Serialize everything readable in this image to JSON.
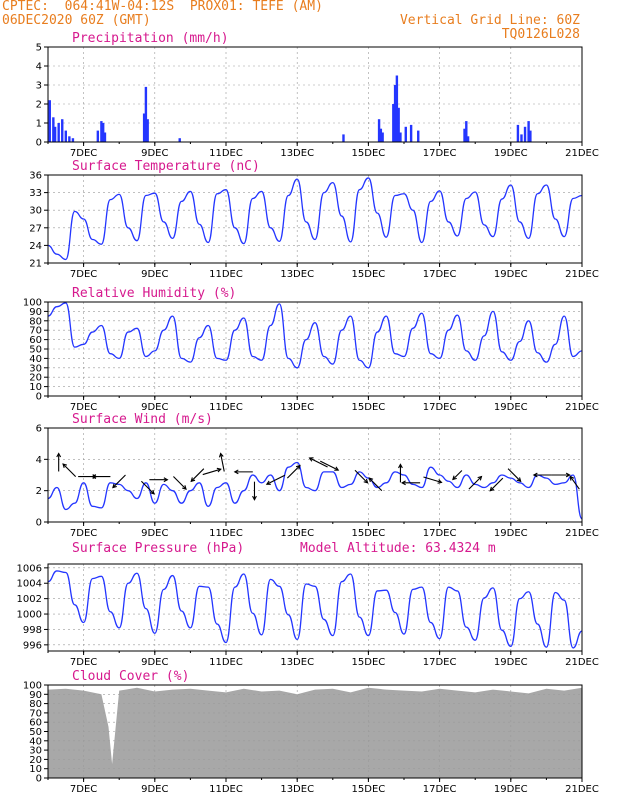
{
  "header": {
    "line1_left": "CPTEC:  064:41W-04:12S  PROX01: TEFE (AM)",
    "line2_left": "06DEC2020 60Z (GMT)",
    "line1_right": "Vertical Grid Line: 60Z",
    "line2_right": "TQ0126L028"
  },
  "x_axis": {
    "start_day": 6,
    "end_day": 21,
    "tick_labels": [
      "7DEC",
      "9DEC",
      "11DEC",
      "13DEC",
      "15DEC",
      "17DEC",
      "19DEC",
      "21DEC"
    ],
    "tick_days": [
      7,
      9,
      11,
      13,
      15,
      17,
      19,
      21
    ]
  },
  "colors": {
    "line": "#2436ff",
    "bar": "#2436ff",
    "cloud": "#a8a8a8",
    "title": "#d6198e",
    "header": "#e87d1e"
  },
  "chart_data": [
    {
      "id": "precip",
      "type": "bar",
      "title": "Precipitation (mm/h)",
      "ylim": [
        0,
        5
      ],
      "yticks": [
        0,
        1,
        2,
        3,
        4,
        5
      ],
      "x": [
        6.05,
        6.15,
        6.2,
        6.3,
        6.4,
        6.5,
        6.6,
        6.7,
        7.4,
        7.5,
        7.55,
        7.6,
        8.7,
        8.75,
        8.8,
        9.7,
        14.3,
        15.3,
        15.35,
        15.4,
        15.7,
        15.75,
        15.8,
        15.85,
        15.9,
        16.05,
        16.2,
        16.4,
        17.7,
        17.75,
        17.8,
        19.2,
        19.3,
        19.4,
        19.5,
        19.55
      ],
      "values": [
        2.2,
        1.3,
        0.8,
        1.0,
        1.2,
        0.6,
        0.3,
        0.2,
        0.6,
        1.1,
        1.0,
        0.5,
        1.5,
        2.9,
        1.2,
        0.2,
        0.4,
        1.2,
        0.7,
        0.5,
        2.0,
        3.0,
        3.5,
        1.8,
        0.5,
        0.8,
        0.9,
        0.6,
        0.7,
        1.1,
        0.3,
        0.9,
        0.4,
        0.8,
        1.1,
        0.6
      ],
      "grid": true
    },
    {
      "id": "temp",
      "type": "line",
      "title": "Surface Temperature (nC)",
      "ylim": [
        21,
        36
      ],
      "yticks": [
        21,
        24,
        27,
        30,
        33,
        36
      ],
      "x": [
        6.0,
        6.25,
        6.5,
        6.75,
        7.0,
        7.25,
        7.5,
        7.75,
        8.0,
        8.25,
        8.5,
        8.75,
        9.0,
        9.25,
        9.5,
        9.75,
        10.0,
        10.25,
        10.5,
        10.75,
        11.0,
        11.25,
        11.5,
        11.75,
        12.0,
        12.25,
        12.5,
        12.75,
        13.0,
        13.25,
        13.5,
        13.75,
        14.0,
        14.25,
        14.5,
        14.75,
        15.0,
        15.25,
        15.5,
        15.75,
        16.0,
        16.25,
        16.5,
        16.75,
        17.0,
        17.25,
        17.5,
        17.75,
        18.0,
        18.25,
        18.5,
        18.75,
        19.0,
        19.25,
        19.5,
        19.75,
        20.0,
        20.25,
        20.5,
        20.75,
        21.0
      ],
      "values": [
        24,
        22.5,
        21.6,
        29.8,
        28.5,
        25,
        24.2,
        31.8,
        32.7,
        27,
        24.8,
        32.5,
        32.9,
        28,
        25.2,
        31.5,
        33.2,
        27.6,
        24.5,
        32.8,
        33.5,
        27,
        24.3,
        32,
        33.2,
        27,
        24.7,
        32.5,
        35.3,
        28,
        25,
        33,
        34.7,
        29,
        24.6,
        33.5,
        35.5,
        29.5,
        25.4,
        32.5,
        32.8,
        30,
        24.5,
        31.5,
        33.3,
        28,
        25.6,
        32,
        33.1,
        27.5,
        25.5,
        31.9,
        34.3,
        28,
        25.2,
        32.8,
        34.3,
        28.5,
        25.5,
        32,
        32.5
      ],
      "grid": true
    },
    {
      "id": "rh",
      "type": "line",
      "title": "Relative Humidity (%)",
      "ylim": [
        0,
        100
      ],
      "yticks": [
        0,
        10,
        20,
        30,
        40,
        50,
        60,
        70,
        80,
        90,
        100
      ],
      "x": [
        6.0,
        6.25,
        6.5,
        6.75,
        7.0,
        7.25,
        7.5,
        7.75,
        8.0,
        8.25,
        8.5,
        8.75,
        9.0,
        9.25,
        9.5,
        9.75,
        10.0,
        10.25,
        10.5,
        10.75,
        11.0,
        11.25,
        11.5,
        11.75,
        12.0,
        12.25,
        12.5,
        12.75,
        13.0,
        13.25,
        13.5,
        13.75,
        14.0,
        14.25,
        14.5,
        14.75,
        15.0,
        15.25,
        15.5,
        15.75,
        16.0,
        16.25,
        16.5,
        16.75,
        17.0,
        17.25,
        17.5,
        17.75,
        18.0,
        18.25,
        18.5,
        18.75,
        19.0,
        19.25,
        19.5,
        19.75,
        20.0,
        20.25,
        20.5,
        20.75,
        21.0
      ],
      "values": [
        85,
        95,
        99,
        52,
        55,
        68,
        75,
        45,
        40,
        68,
        72,
        42,
        48,
        70,
        85,
        40,
        36,
        62,
        75,
        40,
        38,
        70,
        83,
        42,
        38,
        75,
        98,
        40,
        30,
        60,
        78,
        42,
        34,
        70,
        85,
        38,
        30,
        68,
        85,
        45,
        42,
        72,
        88,
        45,
        40,
        70,
        86,
        48,
        38,
        64,
        90,
        47,
        38,
        58,
        80,
        46,
        36,
        55,
        85,
        42,
        48
      ],
      "grid": true
    },
    {
      "id": "wind",
      "type": "line",
      "title": "Surface Wind (m/s)",
      "ylim": [
        0,
        6
      ],
      "yticks": [
        0,
        2,
        4,
        6
      ],
      "x": [
        6.0,
        6.25,
        6.5,
        6.75,
        7.0,
        7.25,
        7.5,
        7.75,
        8.0,
        8.25,
        8.5,
        8.75,
        9.0,
        9.25,
        9.5,
        9.75,
        10.0,
        10.25,
        10.5,
        10.75,
        11.0,
        11.25,
        11.5,
        11.75,
        12.0,
        12.25,
        12.5,
        12.75,
        13.0,
        13.25,
        13.5,
        13.75,
        14.0,
        14.25,
        14.5,
        14.75,
        15.0,
        15.25,
        15.5,
        15.75,
        16.0,
        16.25,
        16.5,
        16.75,
        17.0,
        17.25,
        17.5,
        17.75,
        18.0,
        18.25,
        18.5,
        18.75,
        19.0,
        19.25,
        19.5,
        19.75,
        20.0,
        20.25,
        20.5,
        20.75,
        21.0
      ],
      "values": [
        1.5,
        2.2,
        0.8,
        1.2,
        2.5,
        1.0,
        0.9,
        2.5,
        2.4,
        2.0,
        1.5,
        2.5,
        1.2,
        2.4,
        2.0,
        1.2,
        2.0,
        2.5,
        1.0,
        2.2,
        2.5,
        1.2,
        2.0,
        3.0,
        2.5,
        3.0,
        2.0,
        3.5,
        3.8,
        2.2,
        2.0,
        3.2,
        3.2,
        2.2,
        2.4,
        3.2,
        2.8,
        2.2,
        2.5,
        3.2,
        3.0,
        2.4,
        2.2,
        3.5,
        3.0,
        2.6,
        2.2,
        3.0,
        2.4,
        2.2,
        2.5,
        3.0,
        2.8,
        2.5,
        2.2,
        3.0,
        2.8,
        2.4,
        2.5,
        3.0,
        0.2
      ],
      "arrows": [
        {
          "d": 6.3,
          "v": 3.8,
          "dx": 0,
          "dy": -1
        },
        {
          "d": 6.6,
          "v": 3.3,
          "dx": -0.7,
          "dy": -0.7
        },
        {
          "d": 7.1,
          "v": 2.9,
          "dx": 1,
          "dy": 0
        },
        {
          "d": 7.5,
          "v": 2.9,
          "dx": -1,
          "dy": 0
        },
        {
          "d": 8.0,
          "v": 2.6,
          "dx": -0.7,
          "dy": 0.7
        },
        {
          "d": 8.8,
          "v": 2.2,
          "dx": 0.7,
          "dy": 0.7
        },
        {
          "d": 9.1,
          "v": 2.7,
          "dx": 1,
          "dy": 0
        },
        {
          "d": 9.7,
          "v": 2.5,
          "dx": 0.7,
          "dy": 0.7
        },
        {
          "d": 10.2,
          "v": 3.0,
          "dx": -0.7,
          "dy": 0.7
        },
        {
          "d": 10.6,
          "v": 3.2,
          "dx": 1,
          "dy": -0.3
        },
        {
          "d": 10.9,
          "v": 3.8,
          "dx": -0.2,
          "dy": -1
        },
        {
          "d": 11.5,
          "v": 3.2,
          "dx": -1,
          "dy": 0
        },
        {
          "d": 11.8,
          "v": 2.0,
          "dx": 0,
          "dy": 1
        },
        {
          "d": 12.4,
          "v": 2.7,
          "dx": -1,
          "dy": 0.5
        },
        {
          "d": 12.9,
          "v": 3.2,
          "dx": 0.7,
          "dy": -0.7
        },
        {
          "d": 13.6,
          "v": 3.8,
          "dx": -1,
          "dy": -0.5
        },
        {
          "d": 13.9,
          "v": 3.6,
          "dx": 1,
          "dy": 0.5
        },
        {
          "d": 14.8,
          "v": 2.9,
          "dx": 0.7,
          "dy": 0.7
        },
        {
          "d": 15.2,
          "v": 2.4,
          "dx": -0.7,
          "dy": -0.7
        },
        {
          "d": 15.9,
          "v": 3.1,
          "dx": 0,
          "dy": -1
        },
        {
          "d": 16.2,
          "v": 2.5,
          "dx": -1,
          "dy": 0
        },
        {
          "d": 16.8,
          "v": 2.7,
          "dx": 1,
          "dy": 0.3
        },
        {
          "d": 17.5,
          "v": 3.0,
          "dx": -0.5,
          "dy": 0.5
        },
        {
          "d": 18.0,
          "v": 2.5,
          "dx": 0.7,
          "dy": -0.7
        },
        {
          "d": 18.6,
          "v": 2.4,
          "dx": -0.7,
          "dy": 0.7
        },
        {
          "d": 19.1,
          "v": 3.0,
          "dx": 0.7,
          "dy": 0.7
        },
        {
          "d": 19.9,
          "v": 3.0,
          "dx": -1,
          "dy": 0
        },
        {
          "d": 20.4,
          "v": 3.0,
          "dx": 1,
          "dy": 0
        },
        {
          "d": 20.8,
          "v": 2.5,
          "dx": -0.5,
          "dy": -0.7
        }
      ],
      "grid": true
    },
    {
      "id": "pressure",
      "type": "line",
      "title": "Surface Pressure (hPa)",
      "annotation": "Model Altitude: 63.4324 m",
      "ylim": [
        995.2,
        1006.5
      ],
      "yticks": [
        996,
        998,
        1000,
        1002,
        1004,
        1006
      ],
      "x": [
        6.0,
        6.25,
        6.5,
        6.75,
        7.0,
        7.25,
        7.5,
        7.75,
        8.0,
        8.25,
        8.5,
        8.75,
        9.0,
        9.25,
        9.5,
        9.75,
        10.0,
        10.25,
        10.5,
        10.75,
        11.0,
        11.25,
        11.5,
        11.75,
        12.0,
        12.25,
        12.5,
        12.75,
        13.0,
        13.25,
        13.5,
        13.75,
        14.0,
        14.25,
        14.5,
        14.75,
        15.0,
        15.25,
        15.5,
        15.75,
        16.0,
        16.25,
        16.5,
        16.75,
        17.0,
        17.25,
        17.5,
        17.75,
        18.0,
        18.25,
        18.5,
        18.75,
        19.0,
        19.25,
        19.5,
        19.75,
        20.0,
        20.25,
        20.5,
        20.75,
        21.0
      ],
      "values": [
        1004.2,
        1005.6,
        1005.4,
        1001.2,
        998.9,
        1004.6,
        1004.9,
        1000.3,
        998.2,
        1004.0,
        1005.3,
        1000.7,
        997.5,
        1003.2,
        1005.0,
        1000.4,
        998.2,
        1003.6,
        1003.5,
        998.7,
        996.3,
        1003.5,
        1005.2,
        1000.1,
        997.3,
        1004.5,
        1003.6,
        999.9,
        996.7,
        1003.9,
        1003.6,
        999.3,
        997.2,
        1004.2,
        1005.2,
        999.6,
        997.2,
        1003.0,
        1003.1,
        1000.2,
        997.4,
        1003.2,
        1003.5,
        998.9,
        996.8,
        1003.5,
        1003.0,
        998.3,
        996.6,
        1002.1,
        1003.4,
        997.9,
        995.8,
        1002.0,
        1002.9,
        998.7,
        995.7,
        1002.8,
        1001.8,
        995.6,
        997.8
      ],
      "grid": true
    },
    {
      "id": "cloud",
      "type": "area",
      "title": "Cloud Cover (%)",
      "ylim": [
        0,
        100
      ],
      "yticks": [
        0,
        10,
        20,
        30,
        40,
        50,
        60,
        70,
        80,
        90,
        100
      ],
      "x": [
        6.0,
        6.5,
        7.0,
        7.5,
        7.7,
        7.8,
        8.0,
        8.5,
        9.0,
        9.5,
        10.0,
        10.5,
        11.0,
        11.5,
        12.0,
        12.5,
        13.0,
        13.5,
        14.0,
        14.5,
        15.0,
        15.5,
        16.0,
        16.5,
        17.0,
        17.5,
        18.0,
        18.5,
        19.0,
        19.5,
        20.0,
        20.5,
        21.0
      ],
      "values": [
        95,
        96,
        94,
        90,
        55,
        15,
        94,
        97,
        93,
        95,
        96,
        94,
        92,
        96,
        93,
        94,
        90,
        95,
        96,
        92,
        97,
        95,
        94,
        93,
        96,
        94,
        92,
        95,
        93,
        91,
        96,
        94,
        97
      ],
      "grid": true
    }
  ]
}
